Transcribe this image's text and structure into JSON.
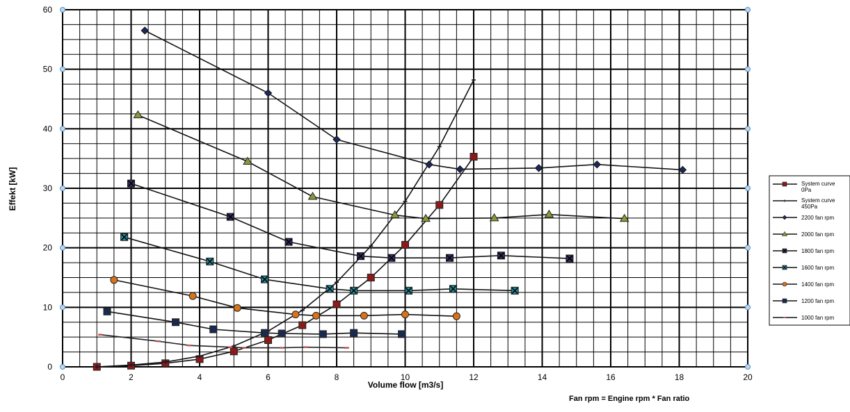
{
  "chart_data": {
    "type": "line",
    "title": "",
    "xlabel": "Volume flow [m3/s]",
    "ylabel": "Effekt [kW]",
    "xlim": [
      0,
      20
    ],
    "ylim": [
      0,
      60
    ],
    "x_ticks": [
      "0",
      "2",
      "4",
      "6",
      "8",
      "10",
      "12",
      "14",
      "16",
      "18",
      "20"
    ],
    "y_ticks": [
      "0",
      "10",
      "20",
      "30",
      "40",
      "50",
      "60"
    ],
    "grid": true,
    "legend_position": "right",
    "series": [
      {
        "name": "System curve 0Pa",
        "color": "#8b1a1a",
        "marker": "square",
        "points": [
          [
            1,
            0
          ],
          [
            2,
            0.2
          ],
          [
            3,
            0.6
          ],
          [
            4,
            1.3
          ],
          [
            5,
            2.6
          ],
          [
            6,
            4.5
          ],
          [
            7,
            7
          ],
          [
            8,
            10.5
          ],
          [
            9,
            15
          ],
          [
            10,
            20.5
          ],
          [
            11,
            27.2
          ],
          [
            12,
            35.3
          ]
        ]
      },
      {
        "name": "System curve 450Pa",
        "color": "#1a1a2e",
        "marker": "plus",
        "points": [
          [
            1,
            0
          ],
          [
            2,
            0.3
          ],
          [
            3,
            0.8
          ],
          [
            4,
            1.8
          ],
          [
            5,
            3.5
          ],
          [
            6,
            6
          ],
          [
            7,
            9.5
          ],
          [
            8,
            14.2
          ],
          [
            9,
            20.3
          ],
          [
            10,
            27.8
          ],
          [
            11,
            37
          ],
          [
            12,
            48.2
          ]
        ]
      },
      {
        "name": "2200 fan rpm",
        "color": "#1a2a5e",
        "marker": "diamond",
        "points": [
          [
            2.4,
            56.5
          ],
          [
            6,
            46
          ],
          [
            8,
            38.2
          ],
          [
            10.7,
            34
          ],
          [
            11.6,
            33.2
          ],
          [
            13.9,
            33.4
          ],
          [
            15.6,
            34
          ],
          [
            18.1,
            33.1
          ]
        ]
      },
      {
        "name": "2000 fan rpm",
        "color": "#8a9a3a",
        "marker": "triangle",
        "points": [
          [
            2.2,
            42.3
          ],
          [
            5.4,
            34.5
          ],
          [
            7.3,
            28.6
          ],
          [
            9.7,
            25.5
          ],
          [
            10.6,
            24.9
          ],
          [
            12.6,
            25
          ],
          [
            14.2,
            25.6
          ],
          [
            16.4,
            24.9
          ]
        ]
      },
      {
        "name": "1800 fan rpm",
        "color": "#3b2d5e",
        "marker": "square-x",
        "points": [
          [
            2,
            30.8
          ],
          [
            4.9,
            25.2
          ],
          [
            6.6,
            21
          ],
          [
            8.7,
            18.6
          ],
          [
            9.6,
            18.3
          ],
          [
            11.3,
            18.3
          ],
          [
            12.8,
            18.7
          ],
          [
            14.8,
            18.2
          ]
        ]
      },
      {
        "name": "1600 fan rpm",
        "color": "#2a8a9a",
        "marker": "square-x",
        "points": [
          [
            1.8,
            21.8
          ],
          [
            4.3,
            17.7
          ],
          [
            5.9,
            14.7
          ],
          [
            7.8,
            13.1
          ],
          [
            8.5,
            12.8
          ],
          [
            10.1,
            12.8
          ],
          [
            11.4,
            13.1
          ],
          [
            13.2,
            12.8
          ]
        ]
      },
      {
        "name": "1400 fan rpm",
        "color": "#d9731a",
        "marker": "circle",
        "points": [
          [
            1.5,
            14.6
          ],
          [
            3.8,
            11.9
          ],
          [
            5.1,
            9.9
          ],
          [
            6.8,
            8.8
          ],
          [
            7.4,
            8.6
          ],
          [
            8.8,
            8.6
          ],
          [
            10,
            8.8
          ],
          [
            11.5,
            8.5
          ]
        ]
      },
      {
        "name": "1200 fan rpm",
        "color": "#1a2a4e",
        "marker": "square",
        "points": [
          [
            1.3,
            9.3
          ],
          [
            3.3,
            7.5
          ],
          [
            4.4,
            6.3
          ],
          [
            5.9,
            5.7
          ],
          [
            6.4,
            5.6
          ],
          [
            7.6,
            5.5
          ],
          [
            8.5,
            5.7
          ],
          [
            9.9,
            5.5
          ]
        ]
      },
      {
        "name": "1000 fan rpm",
        "color": "#c0504d",
        "marker": "dash",
        "points": [
          [
            1.1,
            5.4
          ],
          [
            2.8,
            4.3
          ],
          [
            3.7,
            3.6
          ],
          [
            4.9,
            3.3
          ],
          [
            5.3,
            3.2
          ],
          [
            6.4,
            3.2
          ],
          [
            7.1,
            3.3
          ],
          [
            8.3,
            3.2
          ]
        ]
      }
    ]
  },
  "footnote": "Fan rpm = Engine rpm * Fan ratio"
}
